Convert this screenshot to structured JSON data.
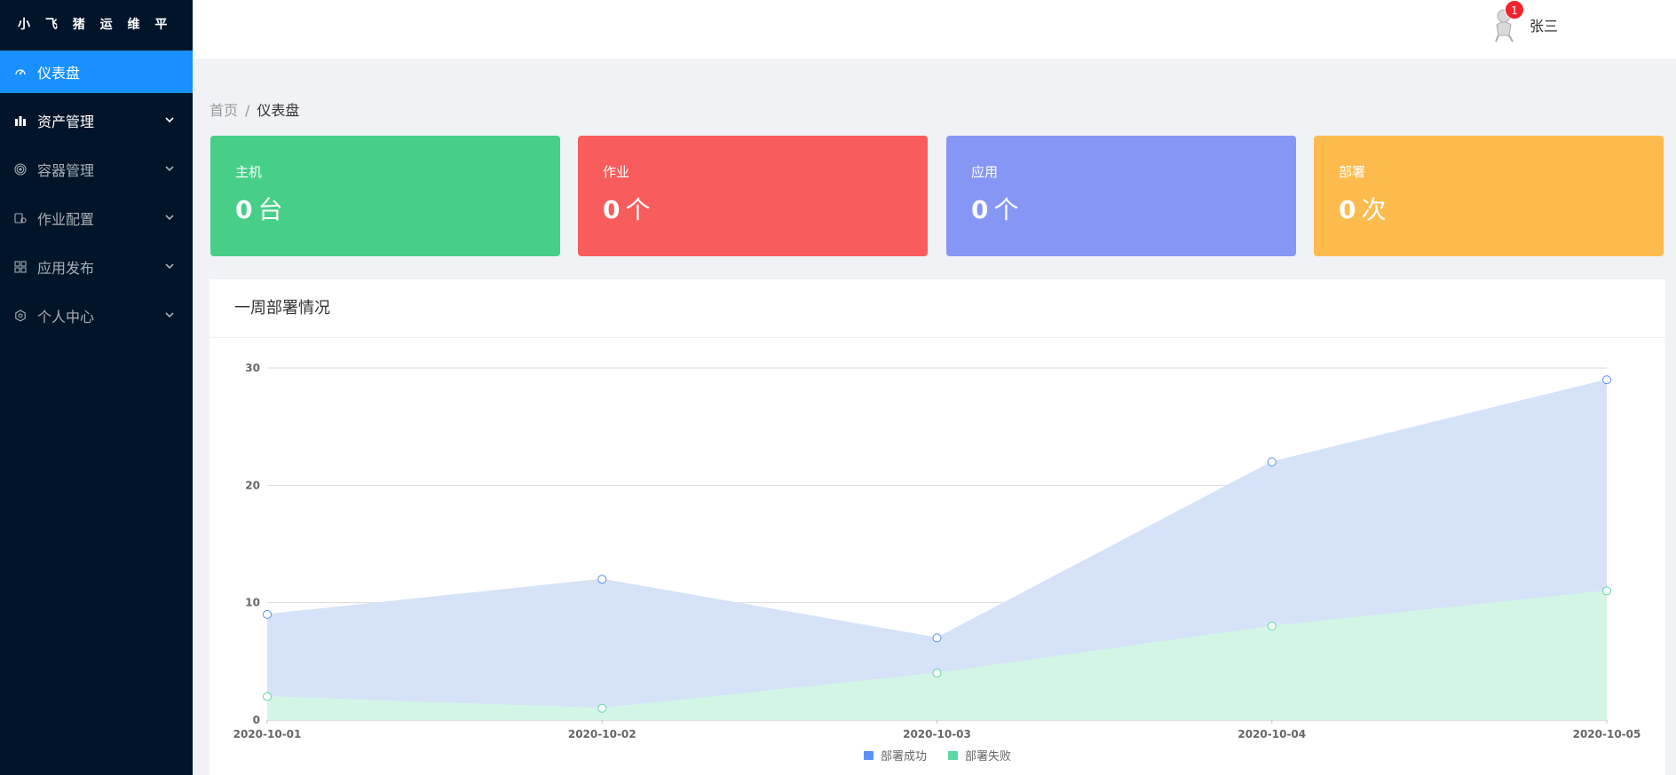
{
  "app": {
    "title": "小 飞 猪 运 维 平 台"
  },
  "sidebar": {
    "items": [
      {
        "label": "仪表盘",
        "icon": "dashboard-icon",
        "active": true,
        "has_children": false
      },
      {
        "label": "资产管理",
        "icon": "asset-icon",
        "active": false,
        "has_children": true
      },
      {
        "label": "容器管理",
        "icon": "container-icon",
        "active": false,
        "has_children": true
      },
      {
        "label": "作业配置",
        "icon": "job-config-icon",
        "active": false,
        "has_children": true
      },
      {
        "label": "应用发布",
        "icon": "app-publish-icon",
        "active": false,
        "has_children": true
      },
      {
        "label": "个人中心",
        "icon": "settings-icon",
        "active": false,
        "has_children": true
      }
    ]
  },
  "header": {
    "username": "张三",
    "notification_count": "1"
  },
  "breadcrumb": {
    "home": "首页",
    "separator": "/",
    "current": "仪表盘"
  },
  "stats": [
    {
      "label": "主机",
      "value": "0",
      "unit": "台",
      "color": "#47cf88"
    },
    {
      "label": "作业",
      "value": "0",
      "unit": "个",
      "color": "#f85c5c"
    },
    {
      "label": "应用",
      "value": "0",
      "unit": "个",
      "color": "#8696f4"
    },
    {
      "label": "部署",
      "value": "0",
      "unit": "次",
      "color": "#fdbb4e"
    }
  ],
  "panel": {
    "title": "一周部署情况"
  },
  "chart_data": {
    "type": "area",
    "title": "一周部署情况",
    "categories": [
      "2020-10-01",
      "2020-10-02",
      "2020-10-03",
      "2020-10-04",
      "2020-10-05"
    ],
    "series": [
      {
        "name": "部署成功",
        "values": [
          9,
          12,
          7,
          22,
          29
        ],
        "color": "#5b8ff9",
        "fill": "#d5e2f8"
      },
      {
        "name": "部署失败",
        "values": [
          2,
          1,
          4,
          8,
          11
        ],
        "color": "#5ad8a6",
        "fill": "#d3f5e6"
      }
    ],
    "ylim": [
      0,
      30
    ],
    "yticks": [
      0,
      10,
      20,
      30
    ],
    "legend_position": "bottom-center",
    "grid": true
  }
}
